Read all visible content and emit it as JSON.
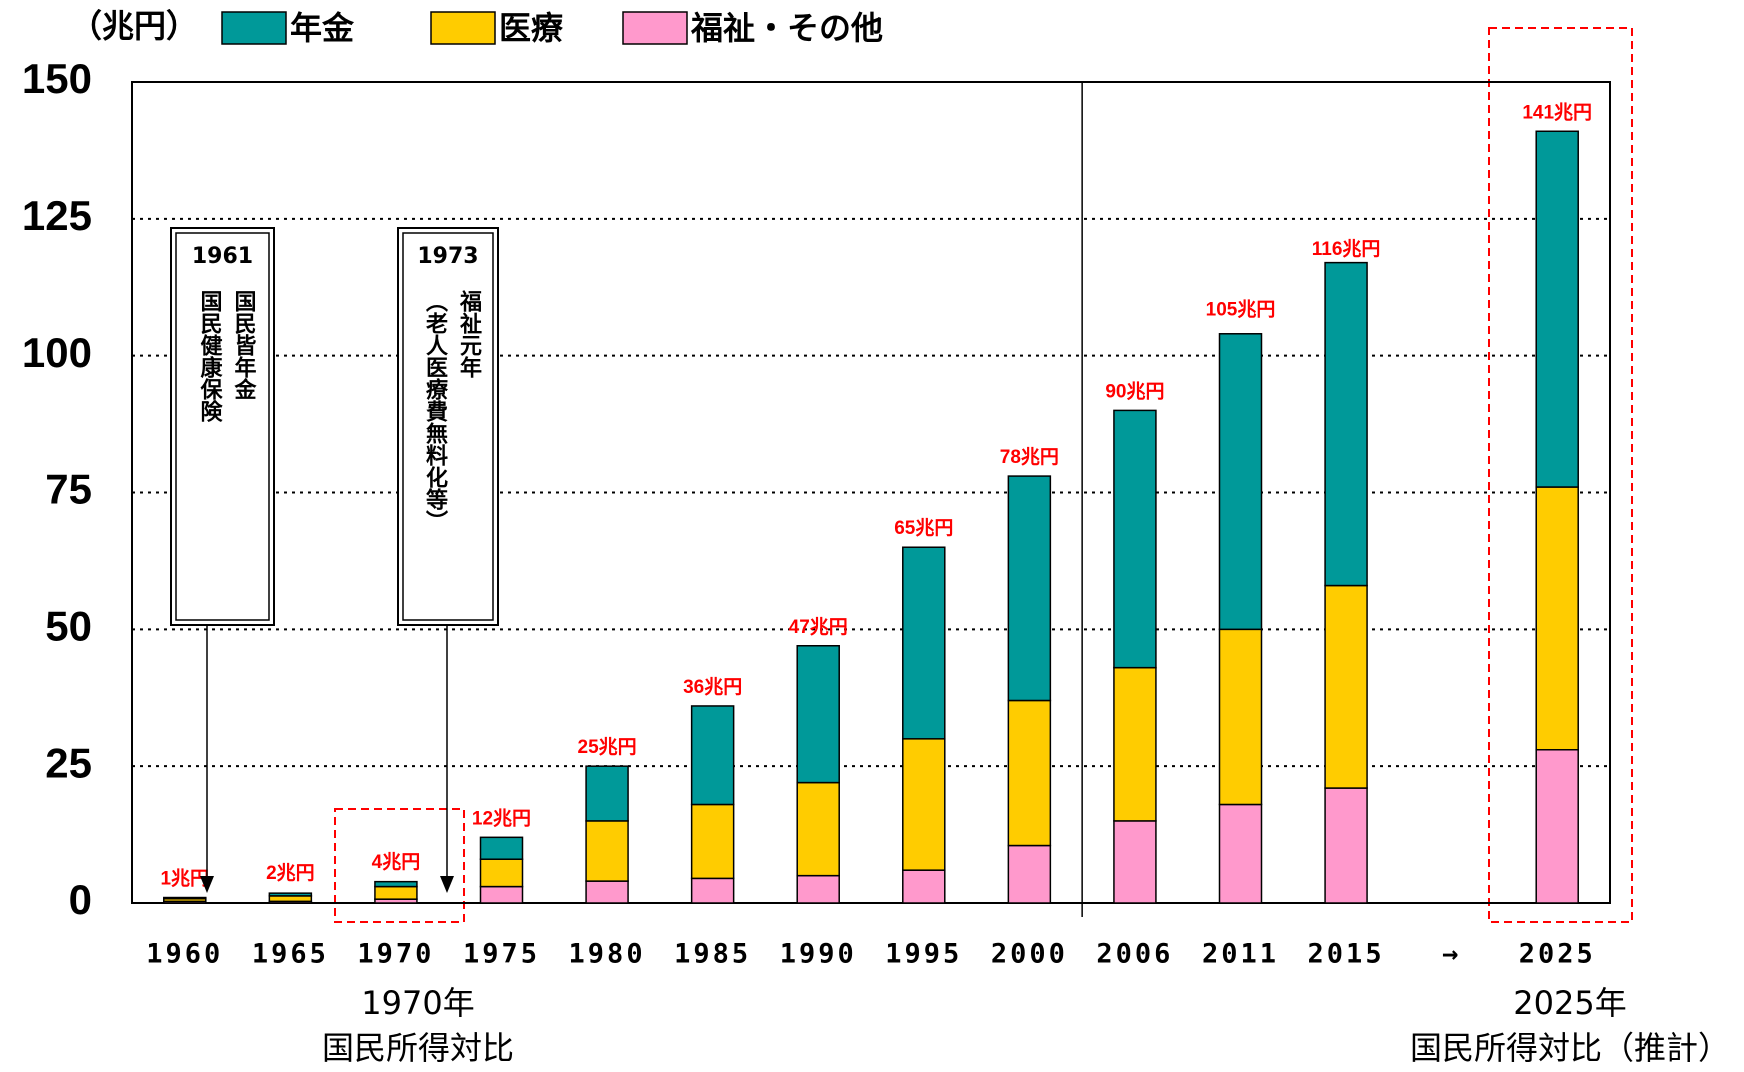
{
  "chart_data": {
    "type": "bar",
    "stacked": true,
    "unit_label": "（兆円）",
    "categories": [
      "1960",
      "1965",
      "1970",
      "1975",
      "1980",
      "1985",
      "1990",
      "1995",
      "2000",
      "2006",
      "2011",
      "2015",
      "→",
      "2025"
    ],
    "series": [
      {
        "name": "年金",
        "color": "#009999",
        "values": [
          0.2,
          0.5,
          0.9,
          4,
          10,
          18,
          25,
          35,
          41,
          47,
          54,
          59,
          null,
          65
        ]
      },
      {
        "name": "医療",
        "color": "#ffcc00",
        "values": [
          0.5,
          1.0,
          2.3,
          5,
          11,
          13.5,
          17,
          24,
          26.5,
          28,
          32,
          37,
          null,
          48
        ]
      },
      {
        "name": "福祉・その他",
        "color": "#ff99cc",
        "values": [
          0.3,
          0.3,
          0.7,
          3,
          4,
          4.5,
          5,
          6,
          10.5,
          15,
          18,
          21,
          null,
          28
        ]
      }
    ],
    "totals": [
      1,
      2,
      4,
      12,
      25,
      36,
      47,
      65,
      78,
      90,
      105,
      116,
      null,
      141
    ],
    "value_labels": [
      "1兆円",
      "2兆円",
      "4兆円",
      "12兆円",
      "25兆円",
      "36兆円",
      "47兆円",
      "65兆円",
      "78兆円",
      "90兆円",
      "105兆円",
      "116兆円",
      null,
      "141兆円"
    ],
    "ylim": [
      0,
      150
    ],
    "yticks": [
      0,
      25,
      50,
      75,
      100,
      125,
      150
    ],
    "grid": true,
    "annotations": [
      {
        "year": "1961",
        "lines": [
          "国民皆年金",
          "国民健康保険"
        ]
      },
      {
        "year": "1973",
        "lines": [
          "福祉元年",
          "（老人医療費無料化等）"
        ]
      }
    ],
    "notes": [
      {
        "lines": [
          "1970年",
          "国民所得対比"
        ]
      },
      {
        "lines": [
          "2025年",
          "国民所得対比（推計）"
        ]
      }
    ]
  }
}
